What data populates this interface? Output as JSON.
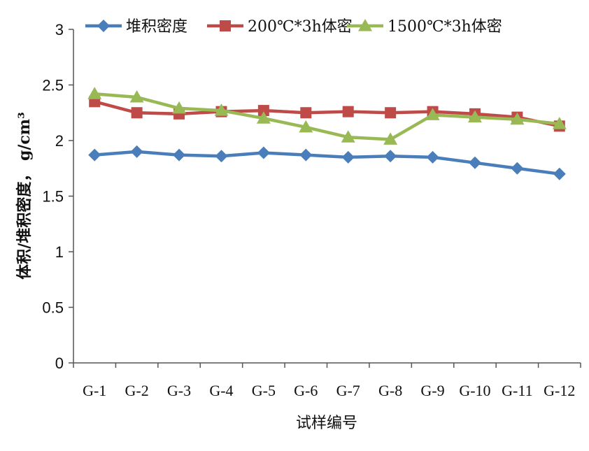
{
  "chart_data": {
    "type": "line",
    "title": "",
    "xlabel": "试样编号",
    "ylabel": "体积/堆积密度， g/cm³",
    "ylim": [
      0,
      3
    ],
    "yticks": [
      "0",
      "0.5",
      "1",
      "1.5",
      "2",
      "2.5",
      "3"
    ],
    "ytick_values": [
      0,
      0.5,
      1,
      1.5,
      2,
      2.5,
      3
    ],
    "categories": [
      "G-1",
      "G-2",
      "G-3",
      "G-4",
      "G-5",
      "G-6",
      "G-7",
      "G-8",
      "G-9",
      "G-10",
      "G-11",
      "G-12"
    ],
    "grid": false,
    "legend_position": "top",
    "series": [
      {
        "name": "堆积密度",
        "color": "#4a7ebb",
        "marker": "diamond",
        "values": [
          1.87,
          1.9,
          1.87,
          1.86,
          1.89,
          1.87,
          1.85,
          1.86,
          1.85,
          1.8,
          1.75,
          1.7
        ]
      },
      {
        "name": "200℃*3h体密",
        "color": "#be4b48",
        "marker": "square",
        "values": [
          2.35,
          2.25,
          2.24,
          2.26,
          2.27,
          2.25,
          2.26,
          2.25,
          2.26,
          2.24,
          2.21,
          2.13
        ]
      },
      {
        "name": "1500℃*3h体密",
        "color": "#98b954",
        "marker": "triangle",
        "values": [
          2.42,
          2.39,
          2.29,
          2.27,
          2.2,
          2.12,
          2.03,
          2.01,
          2.23,
          2.21,
          2.19,
          2.15
        ]
      }
    ]
  }
}
